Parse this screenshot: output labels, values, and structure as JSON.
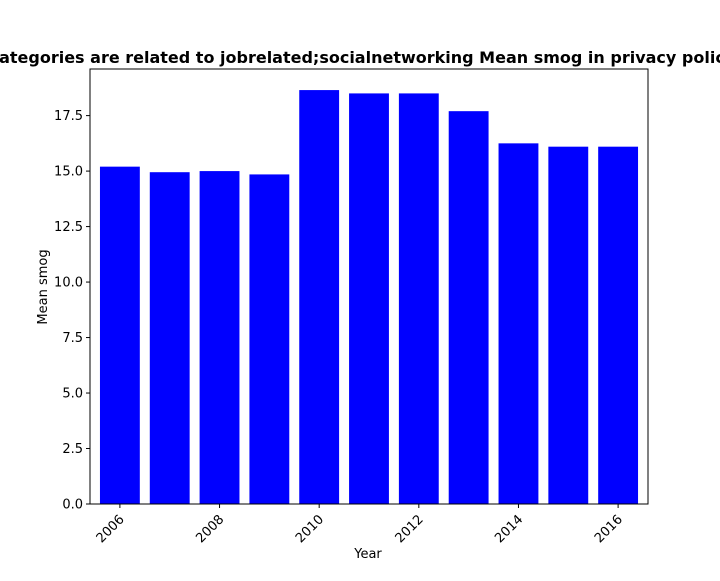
{
  "chart_data": {
    "type": "bar",
    "title": "Categories are related to jobrelated;socialnetworking Mean smog in privacy policies",
    "xlabel": "Year",
    "ylabel": "Mean smog",
    "x": [
      2006,
      2007,
      2008,
      2009,
      2010,
      2011,
      2012,
      2013,
      2014,
      2015,
      2016
    ],
    "values": [
      15.2,
      14.95,
      15.0,
      14.85,
      18.65,
      18.5,
      18.5,
      17.7,
      16.25,
      16.1,
      16.1
    ],
    "xticks": [
      "2006",
      "2008",
      "2010",
      "2012",
      "2014",
      "2016"
    ],
    "yticks": [
      "0.0",
      "2.5",
      "5.0",
      "7.5",
      "10.0",
      "12.5",
      "15.0",
      "17.5"
    ],
    "xlim": [
      2005.4,
      2016.6
    ],
    "ylim": [
      0,
      19.6
    ],
    "bar_color": "#0000ff",
    "grid": false,
    "legend": false
  }
}
